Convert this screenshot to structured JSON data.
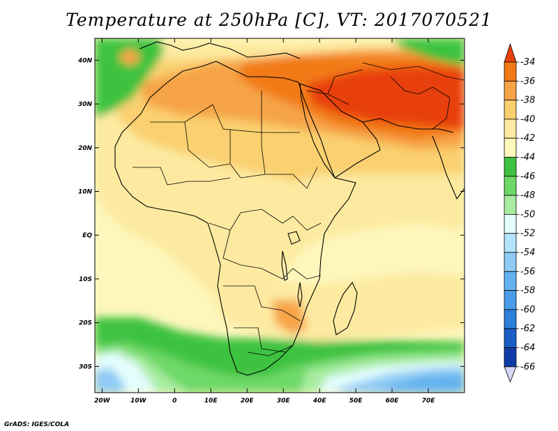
{
  "title": "Temperature at 250hPa [C], VT: 2017070521",
  "credit": "GrADS: IGES/COLA",
  "map": {
    "lon_range": [
      -22,
      80
    ],
    "lat_range": [
      -36,
      45
    ],
    "lat_labels": [
      {
        "lat": 40,
        "text": "40N"
      },
      {
        "lat": 30,
        "text": "30N"
      },
      {
        "lat": 20,
        "text": "20N"
      },
      {
        "lat": 10,
        "text": "10N"
      },
      {
        "lat": 0,
        "text": "EQ"
      },
      {
        "lat": -10,
        "text": "10S"
      },
      {
        "lat": -20,
        "text": "20S"
      },
      {
        "lat": -30,
        "text": "30S"
      }
    ],
    "lon_labels": [
      {
        "lon": -20,
        "text": "20W"
      },
      {
        "lon": -10,
        "text": "10W"
      },
      {
        "lon": 0,
        "text": "0"
      },
      {
        "lon": 10,
        "text": "10E"
      },
      {
        "lon": 20,
        "text": "20E"
      },
      {
        "lon": 30,
        "text": "30E"
      },
      {
        "lon": 40,
        "text": "40E"
      },
      {
        "lon": 50,
        "text": "50E"
      },
      {
        "lon": 60,
        "text": "60E"
      },
      {
        "lon": 70,
        "text": "70E"
      }
    ]
  },
  "colorbar": {
    "levels": [
      "-34",
      "-36",
      "-38",
      "-40",
      "-42",
      "-44",
      "-46",
      "-48",
      "-50",
      "-52",
      "-54",
      "-56",
      "-58",
      "-60",
      "-62",
      "-64",
      "-66"
    ],
    "colors": [
      "#e8400c",
      "#f27a14",
      "#f6a446",
      "#fad06f",
      "#fdeaa0",
      "#fdf7bb",
      "#3ec241",
      "#6ed867",
      "#a7eca0",
      "#e3fdfd",
      "#b3e3fb",
      "#8fcbf5",
      "#63b2ef",
      "#4a9be8",
      "#2c7fda",
      "#1a5fc5",
      "#0f3ca8",
      "#0a1f82"
    ]
  }
}
